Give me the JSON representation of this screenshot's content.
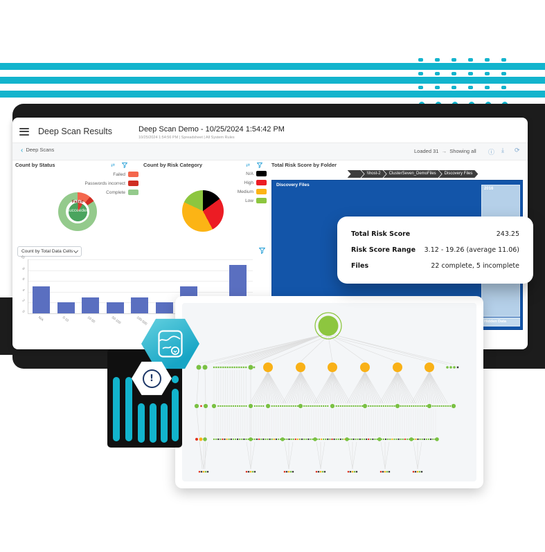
{
  "colors": {
    "teal": "#12b4cd",
    "backdrop": "#1c1c1c",
    "bar_blue": "#5a6fc0",
    "treemap_blue": "#1355a9",
    "treemap_light": "#b5d0e9",
    "navy": "#1c3667"
  },
  "icons": {
    "back_chevron": "‹",
    "arrow_right": "→",
    "swap": "⇄",
    "info": "ⓘ",
    "download": "⤓",
    "refresh": "⟳",
    "exclamation": "!"
  },
  "window": {
    "app_title": "Deep Scan Results",
    "doc_title": "Deep Scan Demo - 10/25/2024 1:54:42 PM",
    "doc_meta": "10/25/2024 1:54:56 PM | Spreadsheet | All System Rules",
    "toolbar": {
      "back_label": "Deep Scans",
      "loaded_label": "Loaded 31",
      "showing_label": "Showing all"
    }
  },
  "status_chart": {
    "title": "Count by Status",
    "type": "donut",
    "legend": [
      {
        "label": "Failed",
        "color": "#f4674d"
      },
      {
        "label": "Passwords incorrect",
        "color": "#cf2e23"
      },
      {
        "label": "Complete",
        "color": "#94ca8c"
      }
    ],
    "outer_segments": [
      {
        "label": "Failed",
        "color": "#f4674d",
        "deg": 40
      },
      {
        "label": "Passwords incorrect",
        "color": "#cf2e23",
        "deg": 17
      },
      {
        "label": "Complete",
        "color": "#94ca8c",
        "deg": 303
      }
    ],
    "inner_segments": [
      {
        "label": "Failed",
        "color": "#d63b30",
        "deg": 30
      },
      {
        "label": "Succeeded",
        "color": "#4aa45e",
        "deg": 330
      }
    ],
    "inner_label_top": "Failed",
    "inner_label_bottom": "Succeeded"
  },
  "risk_chart": {
    "title": "Count by Risk Category",
    "type": "pie",
    "legend": [
      {
        "label": "N/A",
        "color": "#000000"
      },
      {
        "label": "High",
        "color": "#ec1c24"
      },
      {
        "label": "Medium",
        "color": "#fcb415"
      },
      {
        "label": "Low",
        "color": "#8dc63f"
      }
    ],
    "segments": [
      {
        "label": "N/A",
        "color": "#000000",
        "deg": 54
      },
      {
        "label": "High",
        "color": "#ec1c24",
        "deg": 98
      },
      {
        "label": "Medium",
        "color": "#fcb415",
        "deg": 143
      },
      {
        "label": "Low",
        "color": "#8dc63f",
        "deg": 65
      }
    ]
  },
  "folder_chart": {
    "title": "Total Risk Score by Folder",
    "type": "treemap",
    "breadcrumbs": [
      "",
      "\\\\host-2",
      "ClusterSeven_DemoFiles",
      "Discovery Files"
    ],
    "root_label": "Discovery Files",
    "block_label": "2016",
    "hidden_label": "Hidden Data"
  },
  "cells_chart": {
    "selector_label": "Count by Total Data Cells",
    "type": "bar",
    "y_ticks": [
      "0",
      "2",
      "4",
      "6",
      "8",
      "10"
    ],
    "categories": [
      "N/A",
      "0-10",
      "10-50",
      "50-100",
      "100-500",
      "",
      "",
      "",
      ""
    ],
    "values": [
      5,
      2,
      3,
      2,
      3,
      2,
      5,
      2,
      9
    ]
  },
  "score_card": {
    "rows": [
      {
        "label": "Total Risk Score",
        "value": "243.25"
      },
      {
        "label": "Risk Score Range",
        "value": "3.12 - 19.26 (average 11.06)"
      },
      {
        "label": "Files",
        "value": "22 complete, 5 incomplete"
      }
    ]
  }
}
